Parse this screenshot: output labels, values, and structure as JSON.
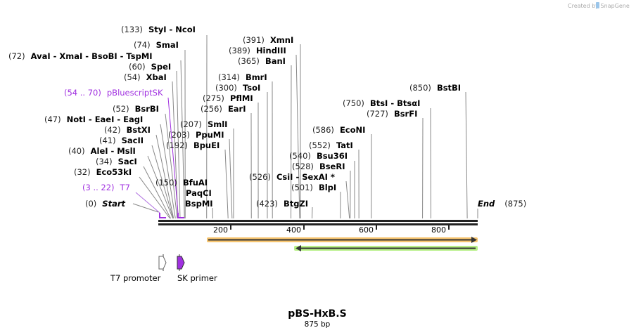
{
  "watermark": "Created by SnapGene",
  "title": "pBS-HxB.S",
  "length": "875 bp",
  "colors": {
    "feature": "#a030e0",
    "orange": "#f7c570",
    "green": "#b8f088"
  },
  "ticks": [
    "200",
    "400",
    "600",
    "800"
  ],
  "start": {
    "pos": "(0)",
    "label": "Start"
  },
  "end": {
    "pos": "(875)",
    "label": "End"
  },
  "sites": [
    {
      "pos": "(133)",
      "name": "StyI  - NcoI"
    },
    {
      "pos": "(74)",
      "name": "SmaI"
    },
    {
      "pos": "(72)",
      "name": "AvaI  - XmaI  - BsoBI  - TspMI"
    },
    {
      "pos": "(60)",
      "name": "SpeI"
    },
    {
      "pos": "(54)",
      "name": "XbaI"
    },
    {
      "pos": "(52)",
      "name": "BsrBI"
    },
    {
      "pos": "(47)",
      "name": "NotI  - EaeI  - EagI"
    },
    {
      "pos": "(42)",
      "name": "BstXI"
    },
    {
      "pos": "(41)",
      "name": "SacII"
    },
    {
      "pos": "(40)",
      "name": "AleI  - MslI"
    },
    {
      "pos": "(34)",
      "name": "SacI"
    },
    {
      "pos": "(32)",
      "name": "Eco53kI"
    },
    {
      "pos": "(207)",
      "name": "SmlI"
    },
    {
      "pos": "(203)",
      "name": "PpuMI"
    },
    {
      "pos": "(192)",
      "name": "BpuEI"
    },
    {
      "pos": "(256)",
      "name": "EarI"
    },
    {
      "pos": "(275)",
      "name": "PflMI"
    },
    {
      "pos": "(300)",
      "name": "TsoI"
    },
    {
      "pos": "(314)",
      "name": "BmrI"
    },
    {
      "pos": "(365)",
      "name": "BanI"
    },
    {
      "pos": "(389)",
      "name": "HindIII"
    },
    {
      "pos": "(391)",
      "name": "XmnI"
    },
    {
      "pos": "(423)",
      "name": "BtgZI"
    },
    {
      "pos": "(501)",
      "name": "BlpI"
    },
    {
      "pos": "(526)",
      "name": "CsiI  - SexAI *"
    },
    {
      "pos": "(528)",
      "name": "BseRI"
    },
    {
      "pos": "(540)",
      "name": "Bsu36I"
    },
    {
      "pos": "(552)",
      "name": "TatI"
    },
    {
      "pos": "(586)",
      "name": "EcoNI"
    },
    {
      "pos": "(727)",
      "name": "BsrFI"
    },
    {
      "pos": "(750)",
      "name": "BtsI  - BtsαI"
    },
    {
      "pos": "(850)",
      "name": "BstBI"
    }
  ],
  "site150": {
    "pos": "(150)",
    "names": [
      "BfuAI",
      "PaqCI",
      "BspMI"
    ]
  },
  "features": [
    {
      "pos": "(54 .. 70)",
      "name": "pBluescriptSK"
    },
    {
      "pos": "(3 .. 22)",
      "name": "T7"
    }
  ],
  "legend": [
    "T7 promoter",
    "SK primer"
  ]
}
